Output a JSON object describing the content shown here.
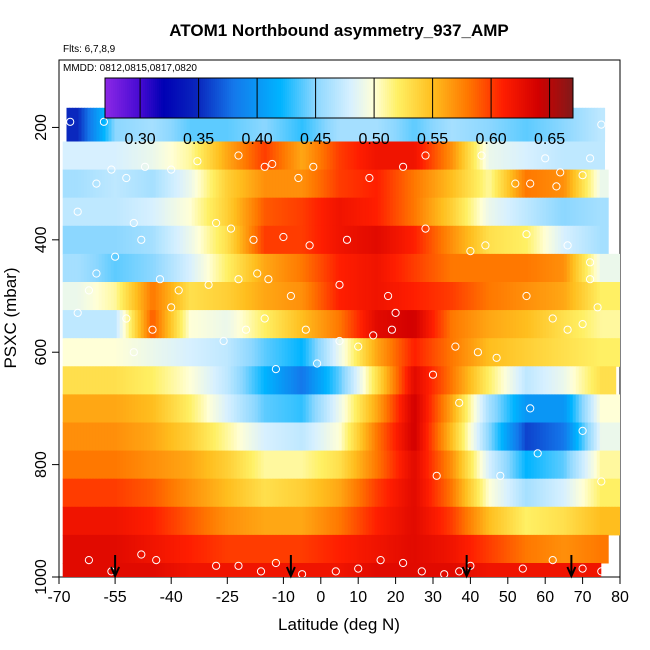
{
  "chart_data": {
    "type": "heatmap",
    "title": "ATOM1 Northbound asymmetry_937_AMP",
    "subtitle_flights": "Flts: 6,7,8,9",
    "subtitle_dates": "MMDD: 0812,0815,0817,0820",
    "xlabel": "Latitude (deg N)",
    "ylabel": "PSXC (mbar)",
    "xlim": [
      -70,
      80
    ],
    "ylim": [
      1000,
      80
    ],
    "x_ticks": [
      -70,
      -55,
      -40,
      -25,
      -10,
      0,
      10,
      20,
      30,
      40,
      50,
      60,
      70,
      80
    ],
    "y_ticks": [
      200,
      400,
      600,
      800,
      1000
    ],
    "colorbar": {
      "range": [
        0.27,
        0.67
      ],
      "ticks": [
        "0.30",
        "0.35",
        "0.40",
        "0.45",
        "0.50",
        "0.55",
        "0.60",
        "0.65"
      ],
      "tick_values": [
        0.3,
        0.35,
        0.4,
        0.45,
        0.5,
        0.55,
        0.6,
        0.65
      ]
    },
    "lat_nodes": [
      -65,
      -55,
      -45,
      -35,
      -25,
      -15,
      -5,
      5,
      15,
      25,
      35,
      45,
      55,
      65,
      75
    ],
    "pressure_levels": [
      200,
      250,
      300,
      350,
      400,
      450,
      500,
      550,
      600,
      650,
      700,
      750,
      800,
      850,
      900,
      950,
      1000
    ],
    "series": [
      {
        "name": "200 mbar",
        "values": [
          0.35,
          0.45,
          0.46,
          0.44,
          0.44,
          0.45,
          0.43,
          0.46,
          0.46,
          0.44,
          0.46,
          0.45,
          0.44,
          0.45,
          0.47
        ]
      },
      {
        "name": "250 mbar",
        "values": [
          0.48,
          0.48,
          0.49,
          0.51,
          0.56,
          0.6,
          0.56,
          0.6,
          0.62,
          0.62,
          0.57,
          0.49,
          0.48,
          0.47,
          0.47
        ]
      },
      {
        "name": "300 mbar",
        "values": [
          0.46,
          0.47,
          0.46,
          0.49,
          0.54,
          0.57,
          0.57,
          0.6,
          0.61,
          0.58,
          0.55,
          0.51,
          0.58,
          0.57,
          0.49
        ]
      },
      {
        "name": "350 mbar",
        "values": [
          0.47,
          0.47,
          0.48,
          0.5,
          0.54,
          0.59,
          0.6,
          0.62,
          0.61,
          0.58,
          0.54,
          0.49,
          0.47,
          0.45,
          0.46
        ]
      },
      {
        "name": "400 mbar",
        "values": [
          0.45,
          0.45,
          0.46,
          0.49,
          0.53,
          0.6,
          0.6,
          0.62,
          0.63,
          0.61,
          0.57,
          0.53,
          0.52,
          0.48,
          0.46
        ]
      },
      {
        "name": "450 mbar",
        "values": [
          0.46,
          0.44,
          0.45,
          0.48,
          0.52,
          0.56,
          0.58,
          0.61,
          0.62,
          0.6,
          0.58,
          0.58,
          0.58,
          0.57,
          0.49
        ]
      },
      {
        "name": "500 mbar",
        "values": [
          0.49,
          0.51,
          0.58,
          0.53,
          0.54,
          0.56,
          0.57,
          0.61,
          0.62,
          0.61,
          0.6,
          0.58,
          0.57,
          0.56,
          0.52
        ]
      },
      {
        "name": "550 mbar",
        "values": [
          0.47,
          0.47,
          0.59,
          0.5,
          0.49,
          0.52,
          0.55,
          0.58,
          0.63,
          0.64,
          0.58,
          0.56,
          0.55,
          0.53,
          0.51
        ]
      },
      {
        "name": "600 mbar",
        "values": [
          0.5,
          0.5,
          0.49,
          0.48,
          0.47,
          0.44,
          0.42,
          0.49,
          0.56,
          0.61,
          0.58,
          0.55,
          0.54,
          0.53,
          0.52
        ]
      },
      {
        "name": "650 mbar",
        "values": [
          0.53,
          0.53,
          0.52,
          0.5,
          0.47,
          0.42,
          0.38,
          0.44,
          0.53,
          0.63,
          0.58,
          0.52,
          0.47,
          0.49,
          0.53
        ]
      },
      {
        "name": "700 mbar",
        "values": [
          0.56,
          0.56,
          0.55,
          0.52,
          0.48,
          0.44,
          0.43,
          0.49,
          0.56,
          0.64,
          0.56,
          0.46,
          0.4,
          0.4,
          0.5
        ]
      },
      {
        "name": "750 mbar",
        "values": [
          0.57,
          0.57,
          0.56,
          0.54,
          0.51,
          0.48,
          0.47,
          0.5,
          0.58,
          0.64,
          0.55,
          0.45,
          0.36,
          0.38,
          0.49
        ]
      },
      {
        "name": "800 mbar",
        "values": [
          0.58,
          0.58,
          0.57,
          0.56,
          0.54,
          0.51,
          0.51,
          0.53,
          0.58,
          0.63,
          0.57,
          0.48,
          0.42,
          0.44,
          0.51
        ]
      },
      {
        "name": "850 mbar",
        "values": [
          0.6,
          0.6,
          0.59,
          0.57,
          0.55,
          0.53,
          0.54,
          0.56,
          0.6,
          0.63,
          0.58,
          0.5,
          0.46,
          0.48,
          0.52
        ]
      },
      {
        "name": "900 mbar",
        "values": [
          0.62,
          0.62,
          0.61,
          0.59,
          0.57,
          0.56,
          0.56,
          0.58,
          0.61,
          0.63,
          0.6,
          0.55,
          0.52,
          0.53,
          0.55
        ]
      },
      {
        "name": "950 mbar",
        "values": [
          0.63,
          0.63,
          0.62,
          0.61,
          0.6,
          0.6,
          0.6,
          0.61,
          0.62,
          0.63,
          0.62,
          0.6,
          0.58,
          0.57,
          0.58
        ]
      },
      {
        "name": "1000 mbar",
        "values": [
          0.63,
          0.63,
          0.63,
          0.62,
          0.62,
          0.62,
          0.62,
          0.62,
          0.63,
          0.63,
          0.63,
          0.62,
          0.62,
          0.62,
          0.62
        ]
      }
    ],
    "row_x_ranges": [
      {
        "p": 200,
        "from": -68,
        "to": 76
      },
      {
        "p": 250,
        "from": -69,
        "to": 76
      },
      {
        "p": 300,
        "from": -69,
        "to": 77
      },
      {
        "p": 350,
        "from": -69,
        "to": 77
      },
      {
        "p": 400,
        "from": -69,
        "to": 77
      },
      {
        "p": 450,
        "from": -69,
        "to": 80
      },
      {
        "p": 500,
        "from": -69,
        "to": 80
      },
      {
        "p": 550,
        "from": -69,
        "to": 80
      },
      {
        "p": 600,
        "from": -69,
        "to": 80
      },
      {
        "p": 650,
        "from": -69,
        "to": 79
      },
      {
        "p": 700,
        "from": -69,
        "to": 80
      },
      {
        "p": 750,
        "from": -69,
        "to": 80
      },
      {
        "p": 800,
        "from": -69,
        "to": 80
      },
      {
        "p": 850,
        "from": -69,
        "to": 80
      },
      {
        "p": 900,
        "from": -69,
        "to": 80
      },
      {
        "p": 950,
        "from": -69,
        "to": 77
      },
      {
        "p": 1000,
        "from": -69,
        "to": 75
      }
    ],
    "observation_points": [
      [
        -67,
        190
      ],
      [
        -58,
        190
      ],
      [
        -22,
        250
      ],
      [
        -15,
        270
      ],
      [
        -13,
        265
      ],
      [
        -6,
        290
      ],
      [
        -2,
        270
      ],
      [
        13,
        290
      ],
      [
        22,
        270
      ],
      [
        28,
        250
      ],
      [
        43,
        250
      ],
      [
        60,
        255
      ],
      [
        64,
        280
      ],
      [
        72,
        255
      ],
      [
        75,
        195
      ],
      [
        -60,
        300
      ],
      [
        -56,
        275
      ],
      [
        -52,
        290
      ],
      [
        -47,
        270
      ],
      [
        -40,
        275
      ],
      [
        -33,
        260
      ],
      [
        52,
        300
      ],
      [
        56,
        300
      ],
      [
        63,
        305
      ],
      [
        70,
        285
      ],
      [
        -65,
        350
      ],
      [
        -50,
        370
      ],
      [
        -48,
        400
      ],
      [
        -28,
        370
      ],
      [
        -24,
        380
      ],
      [
        -18,
        400
      ],
      [
        -10,
        395
      ],
      [
        -3,
        410
      ],
      [
        7,
        400
      ],
      [
        28,
        380
      ],
      [
        40,
        420
      ],
      [
        44,
        410
      ],
      [
        55,
        390
      ],
      [
        66,
        410
      ],
      [
        72,
        440
      ],
      [
        -60,
        460
      ],
      [
        -55,
        430
      ],
      [
        -43,
        470
      ],
      [
        -38,
        490
      ],
      [
        -30,
        480
      ],
      [
        -22,
        470
      ],
      [
        -17,
        460
      ],
      [
        -14,
        470
      ],
      [
        -8,
        500
      ],
      [
        5,
        480
      ],
      [
        18,
        500
      ],
      [
        20,
        530
      ],
      [
        55,
        500
      ],
      [
        62,
        540
      ],
      [
        72,
        470
      ],
      [
        74,
        520
      ],
      [
        -62,
        490
      ],
      [
        -65,
        530
      ],
      [
        -52,
        540
      ],
      [
        -45,
        560
      ],
      [
        -40,
        520
      ],
      [
        -26,
        580
      ],
      [
        -20,
        560
      ],
      [
        -15,
        540
      ],
      [
        -4,
        560
      ],
      [
        -1,
        620
      ],
      [
        5,
        580
      ],
      [
        10,
        590
      ],
      [
        14,
        570
      ],
      [
        19,
        560
      ],
      [
        36,
        590
      ],
      [
        42,
        600
      ],
      [
        47,
        610
      ],
      [
        66,
        560
      ],
      [
        70,
        550
      ],
      [
        -50,
        600
      ],
      [
        -12,
        630
      ],
      [
        30,
        640
      ],
      [
        37,
        690
      ],
      [
        56,
        700
      ],
      [
        70,
        740
      ],
      [
        58,
        780
      ],
      [
        31,
        820
      ],
      [
        48,
        820
      ],
      [
        75,
        830
      ],
      [
        -62,
        970
      ],
      [
        -56,
        990
      ],
      [
        -48,
        960
      ],
      [
        -44,
        970
      ],
      [
        -28,
        980
      ],
      [
        -22,
        980
      ],
      [
        -16,
        990
      ],
      [
        -12,
        975
      ],
      [
        -5,
        995
      ],
      [
        4,
        990
      ],
      [
        10,
        985
      ],
      [
        16,
        970
      ],
      [
        22,
        975
      ],
      [
        27,
        990
      ],
      [
        33,
        995
      ],
      [
        37,
        990
      ],
      [
        40,
        980
      ],
      [
        54,
        985
      ],
      [
        62,
        970
      ],
      [
        70,
        985
      ],
      [
        75,
        990
      ]
    ],
    "annotation_arrows_lat": [
      -55,
      -8,
      39,
      67
    ]
  }
}
